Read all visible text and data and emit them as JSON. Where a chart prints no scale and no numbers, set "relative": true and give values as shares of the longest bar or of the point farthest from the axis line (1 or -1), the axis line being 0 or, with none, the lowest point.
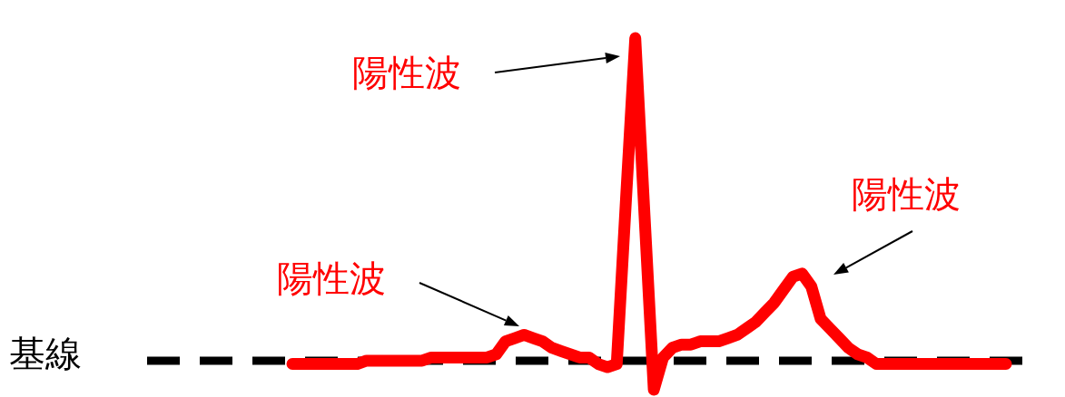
{
  "chart_data": {
    "type": "line",
    "relative": true,
    "categories": [
      null,
      null,
      null,
      null,
      null,
      null,
      null,
      null,
      null,
      null,
      null,
      null,
      null,
      null,
      null,
      null,
      null,
      null,
      null,
      null,
      null,
      null,
      null,
      null,
      null,
      null,
      null,
      null,
      null,
      null,
      null,
      null,
      null,
      null,
      null,
      null,
      null,
      null,
      null,
      null,
      null,
      null,
      null,
      null,
      null,
      null,
      null,
      null,
      null,
      null,
      null,
      null,
      null,
      null,
      null,
      null,
      null,
      null,
      null,
      null,
      null,
      null,
      null,
      null,
      null,
      null,
      null,
      null,
      null,
      null,
      null,
      null,
      null,
      null,
      null,
      null,
      null,
      null
    ],
    "series": [
      {
        "color": "#ff0000",
        "values": [
          -0.01,
          -0.01,
          -0.01,
          -0.01,
          -0.01,
          -0.01,
          -0.01,
          -0.01,
          0,
          0,
          0,
          0,
          0,
          0,
          0,
          0.01,
          0.01,
          0.01,
          0.01,
          0.01,
          0.01,
          0.01,
          0.02,
          0.06,
          0.07,
          0.08,
          0.07,
          0.06,
          0.04,
          0.03,
          0.02,
          0.01,
          0.01,
          -0.01,
          -0.02,
          -0.01,
          0.5,
          1,
          0.45,
          -0.09,
          0.01,
          0.04,
          0.05,
          0.05,
          0.06,
          0.06,
          0.06,
          0.07,
          0.08,
          0.1,
          0.12,
          0.15,
          0.18,
          0.22,
          0.26,
          0.27,
          0.23,
          0.13,
          0.1,
          0.07,
          0.04,
          0.02,
          0.01,
          -0.01,
          -0.01,
          -0.01,
          -0.01,
          -0.01,
          -0.01,
          -0.01,
          -0.01,
          -0.01,
          -0.01,
          -0.01,
          -0.01,
          -0.01,
          -0.01,
          -0.01
        ]
      }
    ],
    "marker": "none",
    "line_style": "solid",
    "legend": false,
    "ref_lines": [
      {
        "axis": "y",
        "value": 0,
        "label": "基線",
        "color": "#000000",
        "line_style": "dashed"
      }
    ],
    "annotations": [
      "陽性波",
      "陽性波",
      "陽性波"
    ]
  }
}
